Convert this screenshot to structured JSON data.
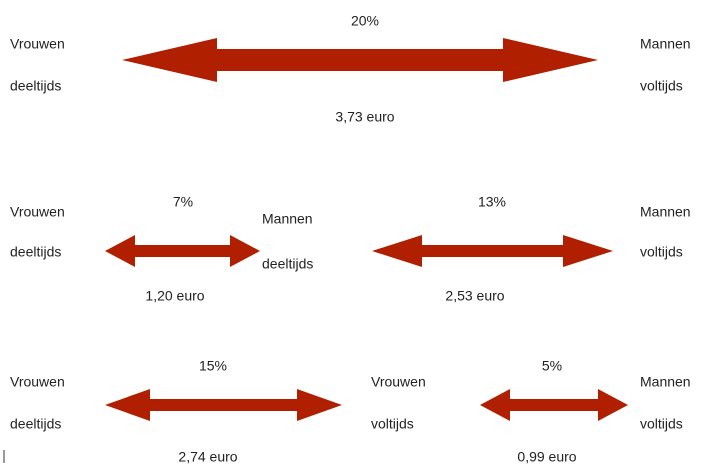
{
  "rows": [
    {
      "nodes": [
        {
          "label": [
            "Vrouwen",
            "deeltijds"
          ]
        },
        {
          "label": [
            "Mannen",
            "voltijds"
          ]
        }
      ],
      "arrows": [
        {
          "percent": "20%",
          "amount": "3,73 euro"
        }
      ]
    },
    {
      "nodes": [
        {
          "label": [
            "Vrouwen",
            "deeltijds"
          ]
        },
        {
          "label": [
            "Mannen",
            "deeltijds"
          ]
        },
        {
          "label": [
            "Mannen",
            "voltijds"
          ]
        }
      ],
      "arrows": [
        {
          "percent": "7%",
          "amount": "1,20 euro"
        },
        {
          "percent": "13%",
          "amount": "2,53 euro"
        }
      ]
    },
    {
      "nodes": [
        {
          "label": [
            "Vrouwen",
            "deeltijds"
          ]
        },
        {
          "label": [
            "Vrouwen",
            "voltijds"
          ]
        },
        {
          "label": [
            "Mannen",
            "voltijds"
          ]
        }
      ],
      "arrows": [
        {
          "percent": "15%",
          "amount": "2,74 euro"
        },
        {
          "percent": "5%",
          "amount": "0,99 euro"
        }
      ]
    }
  ]
}
